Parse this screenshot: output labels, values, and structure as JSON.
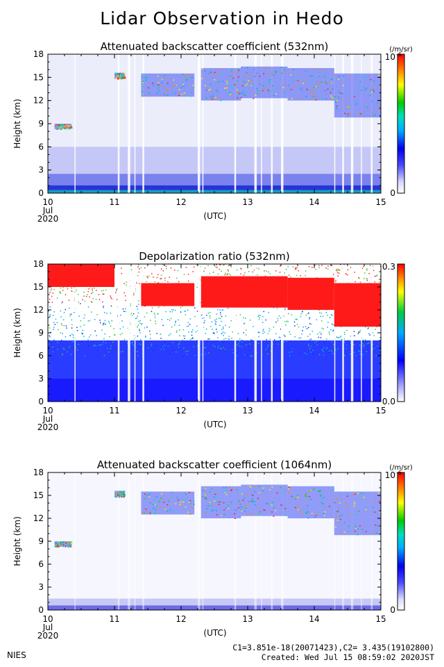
{
  "title": "Lidar Observation in Hedo",
  "organization": "NIES",
  "calibration": "C1=3.851e-18(20071423),C2= 3.435(19102800)",
  "created": "Created: Wed Jul 15 08:59:02 2020JST",
  "chart_data": [
    {
      "type": "heatmap",
      "title": "Attenuated backscatter coefficient (532nm)",
      "ylabel": "Height (km)",
      "xlabel": "(UTC)",
      "x_ticks": [
        "10",
        "11",
        "12",
        "13",
        "14",
        "15"
      ],
      "x_month": "Jul",
      "x_year": "2020",
      "y_ticks": [
        "0",
        "3",
        "6",
        "9",
        "12",
        "15",
        "18"
      ],
      "xlim": [
        10,
        15
      ],
      "ylim": [
        0,
        18
      ],
      "colorbar": {
        "unit": "(/m/sr)",
        "min_label": "0",
        "max_label": "10",
        "max_exponent": "-6"
      },
      "cloud_layers": [
        {
          "x_start": 10.1,
          "x_end": 10.35,
          "bottom_km": 8.3,
          "top_km": 9.0
        },
        {
          "x_start": 11.0,
          "x_end": 11.15,
          "bottom_km": 14.8,
          "top_km": 15.6
        },
        {
          "x_start": 11.4,
          "x_end": 12.2,
          "bottom_km": 12.5,
          "top_km": 15.5
        },
        {
          "x_start": 12.3,
          "x_end": 12.9,
          "bottom_km": 12.0,
          "top_km": 16.2
        },
        {
          "x_start": 12.9,
          "x_end": 13.6,
          "bottom_km": 12.3,
          "top_km": 16.4
        },
        {
          "x_start": 13.6,
          "x_end": 14.3,
          "bottom_km": 12.0,
          "top_km": 16.2
        },
        {
          "x_start": 14.3,
          "x_end": 15.0,
          "bottom_km": 9.8,
          "top_km": 15.5
        }
      ]
    },
    {
      "type": "heatmap",
      "title": "Depolarization ratio (532nm)",
      "ylabel": "Height (km)",
      "xlabel": "(UTC)",
      "x_ticks": [
        "10",
        "11",
        "12",
        "13",
        "14",
        "15"
      ],
      "x_month": "Jul",
      "x_year": "2020",
      "y_ticks": [
        "0",
        "3",
        "6",
        "9",
        "12",
        "15",
        "18"
      ],
      "xlim": [
        10,
        15
      ],
      "ylim": [
        0,
        18
      ],
      "colorbar": {
        "min_label": "0.0",
        "max_label": "0.3",
        "min": 0.0,
        "max": 0.3
      },
      "cloud_layers": [
        {
          "x_start": 10.0,
          "x_end": 11.0,
          "bottom_km": 15.0,
          "top_km": 18.0
        },
        {
          "x_start": 11.4,
          "x_end": 12.2,
          "bottom_km": 12.5,
          "top_km": 15.5
        },
        {
          "x_start": 12.3,
          "x_end": 13.6,
          "bottom_km": 12.3,
          "top_km": 16.4
        },
        {
          "x_start": 13.6,
          "x_end": 14.3,
          "bottom_km": 12.0,
          "top_km": 16.2
        },
        {
          "x_start": 14.3,
          "x_end": 15.0,
          "bottom_km": 9.8,
          "top_km": 15.5
        }
      ]
    },
    {
      "type": "heatmap",
      "title": "Attenuated backscatter coefficient (1064nm)",
      "ylabel": "Height (km)",
      "xlabel": "(UTC)",
      "x_ticks": [
        "10",
        "11",
        "12",
        "13",
        "14",
        "15"
      ],
      "x_month": "Jul",
      "x_year": "2020",
      "y_ticks": [
        "0",
        "3",
        "6",
        "9",
        "12",
        "15",
        "18"
      ],
      "xlim": [
        10,
        15
      ],
      "ylim": [
        0,
        18
      ],
      "colorbar": {
        "unit": "(/m/sr)",
        "min_label": "0",
        "max_label": "10",
        "max_exponent": "-6"
      },
      "cloud_layers": [
        {
          "x_start": 10.1,
          "x_end": 10.35,
          "bottom_km": 8.3,
          "top_km": 9.0
        },
        {
          "x_start": 11.0,
          "x_end": 11.15,
          "bottom_km": 14.8,
          "top_km": 15.6
        },
        {
          "x_start": 11.4,
          "x_end": 12.2,
          "bottom_km": 12.5,
          "top_km": 15.5
        },
        {
          "x_start": 12.3,
          "x_end": 12.9,
          "bottom_km": 12.0,
          "top_km": 16.2
        },
        {
          "x_start": 12.9,
          "x_end": 13.6,
          "bottom_km": 12.3,
          "top_km": 16.4
        },
        {
          "x_start": 13.6,
          "x_end": 14.3,
          "bottom_km": 12.0,
          "top_km": 16.2
        },
        {
          "x_start": 14.3,
          "x_end": 15.0,
          "bottom_km": 9.8,
          "top_km": 15.5
        }
      ]
    }
  ]
}
